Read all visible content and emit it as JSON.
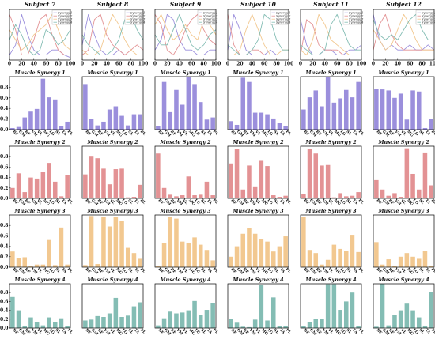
{
  "chart_data": {
    "type": "bar",
    "colors": {
      "synergy_1": "#9b8fdc",
      "synergy_2": "#e39294",
      "synergy_3": "#f2c890",
      "synergy_4": "#84bdb4"
    },
    "line_charts": {
      "type": "line",
      "x_ticks": [
        "0",
        "20",
        "40",
        "60",
        "80",
        "100"
      ],
      "xlim": [
        0,
        100
      ],
      "ylim": [
        0,
        1
      ],
      "legend_position": "top-right",
      "legend": [
        "Synergy 1",
        "Synergy 2",
        "Synergy 3",
        "Synergy 4"
      ],
      "x": [
        0,
        10,
        20,
        30,
        40,
        50,
        60,
        70,
        80,
        90,
        100
      ]
    },
    "bar_charts": {
      "y_ticks": [
        "0.0",
        "0.2",
        "0.4",
        "0.6",
        "0.8"
      ],
      "ylim": [
        0,
        1.0
      ],
      "categories": [
        "BF",
        "GM",
        "RF",
        "VM",
        "VL",
        "MG",
        "LG",
        "SL",
        "TA",
        "PL"
      ]
    },
    "subjects": [
      {
        "title": "Subject 7",
        "curves": [
          {
            "name": "Synergy 1",
            "values": [
              0.1,
              0.3,
              0.9,
              0.5,
              0.2,
              0.1,
              0.1,
              0.2,
              0.2,
              0.1,
              0.05
            ]
          },
          {
            "name": "Synergy 2",
            "values": [
              0.9,
              0.6,
              0.1,
              0.1,
              0.4,
              0.8,
              0.9,
              0.5,
              0.2,
              0.1,
              0.1
            ]
          },
          {
            "name": "Synergy 3",
            "values": [
              0.6,
              0.4,
              0.2,
              0.3,
              0.5,
              0.6,
              0.7,
              0.9,
              0.6,
              0.3,
              0.2
            ]
          },
          {
            "name": "Synergy 4",
            "values": [
              0.4,
              0.7,
              0.5,
              0.2,
              0.1,
              0.2,
              0.6,
              0.5,
              0.3,
              0.4,
              0.6
            ]
          }
        ],
        "synergies": [
          {
            "title": "Muscle Synergy 1",
            "values": [
              0.03,
              0.05,
              0.23,
              0.34,
              0.39,
              0.96,
              0.61,
              0.57,
              0.06,
              0.15
            ]
          },
          {
            "title": "Muscle Synergy 2",
            "values": [
              0.2,
              0.48,
              0.12,
              0.4,
              0.38,
              0.5,
              0.68,
              0.32,
              0.04,
              0.44
            ]
          },
          {
            "title": "Muscle Synergy 3",
            "values": [
              0.3,
              0.17,
              0.19,
              0.02,
              0.05,
              0.05,
              0.52,
              0.04,
              0.76,
              0.05
            ]
          },
          {
            "title": "Muscle Synergy 4",
            "values": [
              0.7,
              0.4,
              0.05,
              0.24,
              0.13,
              0.06,
              0.24,
              0.14,
              0.22,
              0.05
            ]
          }
        ]
      },
      {
        "title": "Subject 8",
        "curves": [
          {
            "name": "Synergy 1",
            "values": [
              0.3,
              0.9,
              0.5,
              0.2,
              0.1,
              0.1,
              0.2,
              0.1,
              0.1,
              0.1,
              0.1
            ]
          },
          {
            "name": "Synergy 2",
            "values": [
              0.1,
              0.2,
              0.8,
              0.9,
              0.5,
              0.3,
              0.2,
              0.1,
              0.2,
              0.3,
              0.2
            ]
          },
          {
            "name": "Synergy 3",
            "values": [
              0.2,
              0.1,
              0.1,
              0.2,
              0.6,
              0.9,
              0.7,
              0.4,
              0.2,
              0.1,
              0.1
            ]
          },
          {
            "name": "Synergy 4",
            "values": [
              0.5,
              0.3,
              0.2,
              0.1,
              0.1,
              0.2,
              0.4,
              0.8,
              0.9,
              0.6,
              0.4
            ]
          }
        ],
        "synergies": [
          {
            "title": "Muscle Synergy 1",
            "values": [
              0.86,
              0.2,
              0.08,
              0.15,
              0.38,
              0.44,
              0.26,
              0.08,
              0.29,
              0.29
            ]
          },
          {
            "title": "Muscle Synergy 2",
            "values": [
              0.46,
              0.8,
              0.77,
              0.57,
              0.27,
              0.56,
              0.57,
              0.02,
              0.03,
              0.26
            ]
          },
          {
            "title": "Muscle Synergy 3",
            "values": [
              0.04,
              0.98,
              0.06,
              0.97,
              0.78,
              0.96,
              0.88,
              0.37,
              0.27,
              0.16
            ]
          },
          {
            "title": "Muscle Synergy 4",
            "values": [
              0.17,
              0.19,
              0.27,
              0.25,
              0.33,
              0.68,
              0.25,
              0.28,
              0.49,
              0.58
            ]
          }
        ]
      },
      {
        "title": "Subject 9",
        "curves": [
          {
            "name": "Synergy 1",
            "values": [
              0.2,
              0.4,
              0.9,
              0.8,
              0.4,
              0.2,
              0.2,
              0.1,
              0.1,
              0.2,
              0.2
            ]
          },
          {
            "name": "Synergy 2",
            "values": [
              0.9,
              0.7,
              0.2,
              0.1,
              0.3,
              0.6,
              0.8,
              0.9,
              0.6,
              0.4,
              0.3
            ]
          },
          {
            "name": "Synergy 3",
            "values": [
              0.7,
              0.9,
              0.6,
              0.4,
              0.5,
              0.7,
              0.5,
              0.4,
              0.8,
              0.7,
              0.5
            ]
          },
          {
            "name": "Synergy 4",
            "values": [
              0.5,
              0.3,
              0.3,
              0.6,
              0.9,
              0.6,
              0.3,
              0.2,
              0.3,
              0.5,
              0.6
            ]
          }
        ],
        "synergies": [
          {
            "title": "Muscle Synergy 1",
            "values": [
              0.07,
              0.9,
              0.33,
              0.75,
              0.47,
              0.99,
              0.86,
              0.52,
              0.19,
              0.23
            ]
          },
          {
            "title": "Muscle Synergy 2",
            "values": [
              0.86,
              0.2,
              0.07,
              0.04,
              0.06,
              0.42,
              0.06,
              0.07,
              0.32,
              0.06
            ]
          },
          {
            "title": "Muscle Synergy 3",
            "values": [
              0.02,
              0.46,
              0.97,
              0.93,
              0.49,
              0.47,
              0.57,
              0.43,
              0.33,
              0.13
            ]
          },
          {
            "title": "Muscle Synergy 4",
            "values": [
              0.06,
              0.22,
              0.37,
              0.33,
              0.35,
              0.4,
              0.61,
              0.29,
              0.41,
              0.56
            ]
          }
        ]
      },
      {
        "title": "Subject 10",
        "curves": [
          {
            "name": "Synergy 1",
            "values": [
              0.2,
              0.9,
              0.6,
              0.2,
              0.1,
              0.1,
              0.1,
              0.2,
              0.1,
              0.1,
              0.1
            ]
          },
          {
            "name": "Synergy 2",
            "values": [
              0.9,
              0.3,
              0.1,
              0.1,
              0.2,
              0.2,
              0.1,
              0.1,
              0.1,
              0.1,
              0.1
            ]
          },
          {
            "name": "Synergy 3",
            "values": [
              0.1,
              0.1,
              0.2,
              0.6,
              0.9,
              0.6,
              0.3,
              0.1,
              0.1,
              0.2,
              0.2
            ]
          },
          {
            "name": "Synergy 4",
            "values": [
              0.3,
              0.2,
              0.1,
              0.1,
              0.2,
              0.4,
              0.9,
              0.8,
              0.4,
              0.2,
              0.2
            ]
          }
        ],
        "synergies": [
          {
            "title": "Muscle Synergy 1",
            "values": [
              0.16,
              0.09,
              0.98,
              0.9,
              0.32,
              0.32,
              0.29,
              0.21,
              0.12,
              0.06
            ]
          },
          {
            "title": "Muscle Synergy 2",
            "values": [
              0.67,
              0.94,
              0.17,
              0.63,
              0.23,
              0.72,
              0.62,
              0.06,
              0.03,
              0.05
            ]
          },
          {
            "title": "Muscle Synergy 3",
            "values": [
              0.2,
              0.4,
              0.64,
              0.75,
              0.64,
              0.53,
              0.49,
              0.3,
              0.4,
              0.59
            ]
          },
          {
            "title": "Muscle Synergy 4",
            "values": [
              0.2,
              0.12,
              0.03,
              0.02,
              0.19,
              0.97,
              0.17,
              0.69,
              0.05,
              0.04
            ]
          }
        ]
      },
      {
        "title": "Subject 11",
        "curves": [
          {
            "name": "Synergy 1",
            "values": [
              0.8,
              0.3,
              0.1,
              0.1,
              0.2,
              0.2,
              0.1,
              0.1,
              0.2,
              0.2,
              0.3
            ]
          },
          {
            "name": "Synergy 2",
            "values": [
              0.1,
              0.8,
              0.7,
              0.3,
              0.2,
              0.2,
              0.2,
              0.1,
              0.1,
              0.1,
              0.1
            ]
          },
          {
            "name": "Synergy 3",
            "values": [
              0.2,
              0.1,
              0.4,
              0.9,
              0.7,
              0.4,
              0.3,
              0.2,
              0.1,
              0.1,
              0.1
            ]
          },
          {
            "name": "Synergy 4",
            "values": [
              0.3,
              0.2,
              0.1,
              0.1,
              0.2,
              0.7,
              0.9,
              0.6,
              0.3,
              0.2,
              0.2
            ]
          }
        ],
        "synergies": [
          {
            "title": "Muscle Synergy 1",
            "values": [
              0.38,
              0.61,
              0.74,
              0.44,
              1.0,
              0.51,
              0.59,
              0.75,
              0.61,
              0.9
            ]
          },
          {
            "title": "Muscle Synergy 2",
            "values": [
              0.08,
              0.94,
              0.86,
              0.63,
              0.64,
              0.02,
              0.1,
              0.04,
              0.05,
              0.12
            ]
          },
          {
            "title": "Muscle Synergy 3",
            "values": [
              0.97,
              0.33,
              0.27,
              0.05,
              0.14,
              0.43,
              0.35,
              0.31,
              0.62,
              0.29
            ]
          },
          {
            "title": "Muscle Synergy 4",
            "values": [
              0.04,
              0.14,
              0.2,
              0.2,
              0.99,
              0.99,
              0.41,
              0.6,
              0.8,
              0.05
            ]
          }
        ]
      },
      {
        "title": "Subject 12",
        "curves": [
          {
            "name": "Synergy 1",
            "values": [
              0.9,
              0.4,
              0.2,
              0.3,
              0.2,
              0.2,
              0.3,
              0.2,
              0.2,
              0.3,
              0.2
            ]
          },
          {
            "name": "Synergy 2",
            "values": [
              0.2,
              0.7,
              0.9,
              0.5,
              0.3,
              0.2,
              0.2,
              0.2,
              0.2,
              0.2,
              0.2
            ]
          },
          {
            "name": "Synergy 3",
            "values": [
              0.6,
              0.4,
              0.2,
              0.3,
              0.6,
              0.9,
              0.7,
              0.4,
              0.2,
              0.2,
              0.2
            ]
          },
          {
            "name": "Synergy 4",
            "values": [
              0.8,
              0.5,
              0.4,
              0.5,
              0.4,
              0.6,
              0.8,
              0.9,
              0.6,
              0.4,
              0.4
            ]
          }
        ],
        "synergies": [
          {
            "title": "Muscle Synergy 1",
            "values": [
              0.77,
              0.76,
              0.74,
              0.6,
              0.68,
              0.19,
              0.74,
              0.72,
              0.03,
              0.2
            ]
          },
          {
            "title": "Muscle Synergy 2",
            "values": [
              0.35,
              0.17,
              0.05,
              0.1,
              0.03,
              0.96,
              0.47,
              0.17,
              0.88,
              0.25
            ]
          },
          {
            "title": "Muscle Synergy 3",
            "values": [
              0.48,
              0.05,
              0.15,
              0.03,
              0.2,
              0.27,
              0.2,
              0.16,
              0.31,
              0.03
            ]
          },
          {
            "title": "Muscle Synergy 4",
            "values": [
              0.03,
              1.0,
              0.06,
              0.29,
              0.4,
              0.55,
              0.4,
              0.24,
              0.05,
              0.81
            ]
          }
        ]
      }
    ]
  }
}
